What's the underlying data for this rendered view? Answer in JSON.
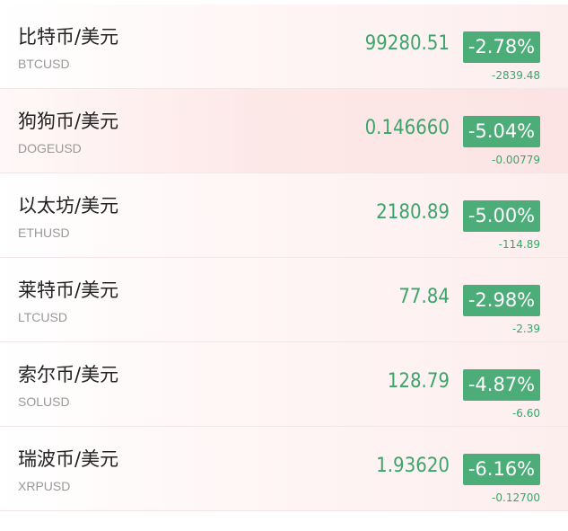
{
  "colors": {
    "up_down_green": "#4cad78",
    "price_green": "#3ba56b"
  },
  "rows": [
    {
      "name": "比特币/美元",
      "symbol": "BTCUSD",
      "price": "99280.51",
      "percent": "-2.78%",
      "change": "-2839.48"
    },
    {
      "name": "狗狗币/美元",
      "symbol": "DOGEUSD",
      "price": "0.146660",
      "percent": "-5.04%",
      "change": "-0.00779"
    },
    {
      "name": "以太坊/美元",
      "symbol": "ETHUSD",
      "price": "2180.89",
      "percent": "-5.00%",
      "change": "-114.89"
    },
    {
      "name": "莱特币/美元",
      "symbol": "LTCUSD",
      "price": "77.84",
      "percent": "-2.98%",
      "change": "-2.39"
    },
    {
      "name": "索尔币/美元",
      "symbol": "SOLUSD",
      "price": "128.79",
      "percent": "-4.87%",
      "change": "-6.60"
    },
    {
      "name": "瑞波币/美元",
      "symbol": "XRPUSD",
      "price": "1.93620",
      "percent": "-6.16%",
      "change": "-0.12700"
    }
  ]
}
